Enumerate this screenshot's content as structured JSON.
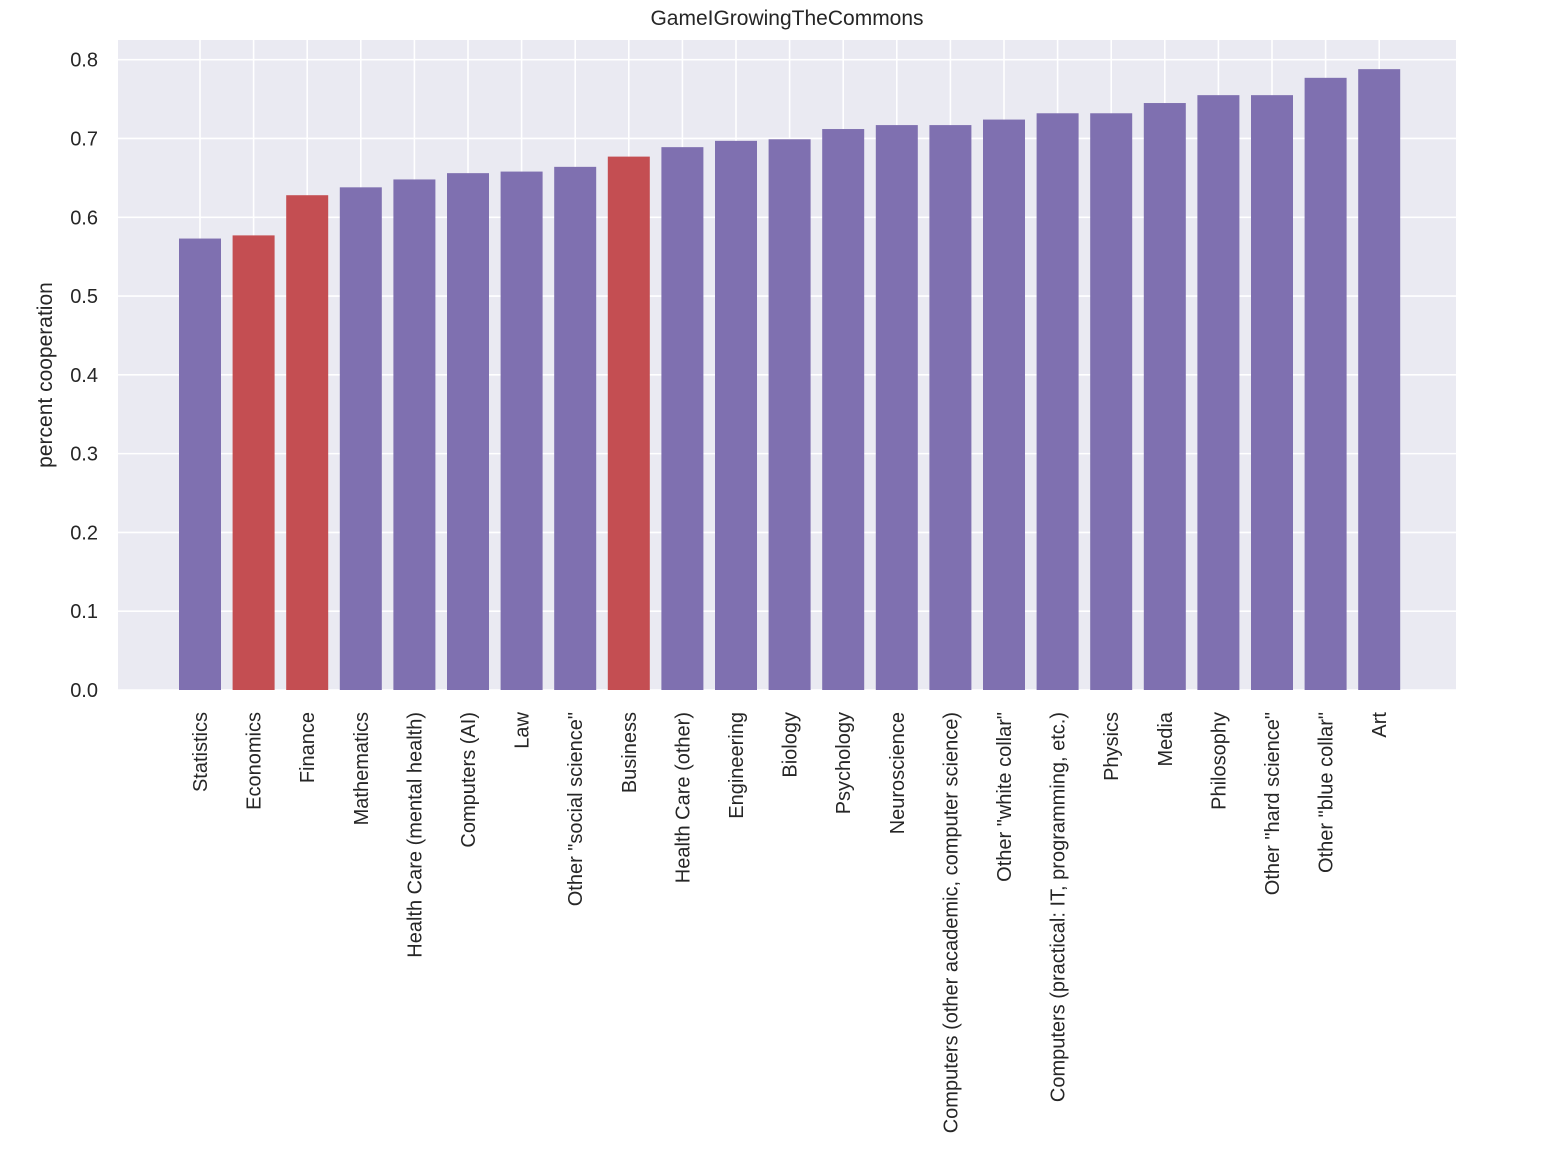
{
  "chart_data": {
    "type": "bar",
    "title": "GameIGrowingTheCommons",
    "xlabel": "",
    "ylabel": "percent cooperation",
    "ylim": [
      0,
      0.825
    ],
    "yticks": [
      "0.0",
      "0.1",
      "0.2",
      "0.3",
      "0.4",
      "0.5",
      "0.6",
      "0.7",
      "0.8"
    ],
    "grid": true,
    "colors": {
      "default": "#7f70b0",
      "highlight": "#c44e52",
      "background": "#eaeaf2",
      "grid": "#ffffff"
    },
    "categories": [
      "Statistics",
      "Economics",
      "Finance",
      "Mathematics",
      "Health Care (mental health)",
      "Computers (AI)",
      "Law",
      "Other \"social science\"",
      "Business",
      "Health Care (other)",
      "Engineering",
      "Biology",
      "Psychology",
      "Neuroscience",
      "Computers (other academic, computer science)",
      "Other \"white collar\"",
      "Computers (practical: IT, programming, etc.)",
      "Physics",
      "Media",
      "Philosophy",
      "Other \"hard science\"",
      "Other \"blue collar\"",
      "Art"
    ],
    "values": [
      0.573,
      0.577,
      0.628,
      0.638,
      0.648,
      0.656,
      0.658,
      0.664,
      0.677,
      0.689,
      0.697,
      0.699,
      0.712,
      0.717,
      0.717,
      0.724,
      0.732,
      0.732,
      0.745,
      0.755,
      0.755,
      0.777,
      0.788
    ],
    "highlighted": [
      "Economics",
      "Finance",
      "Business"
    ]
  }
}
